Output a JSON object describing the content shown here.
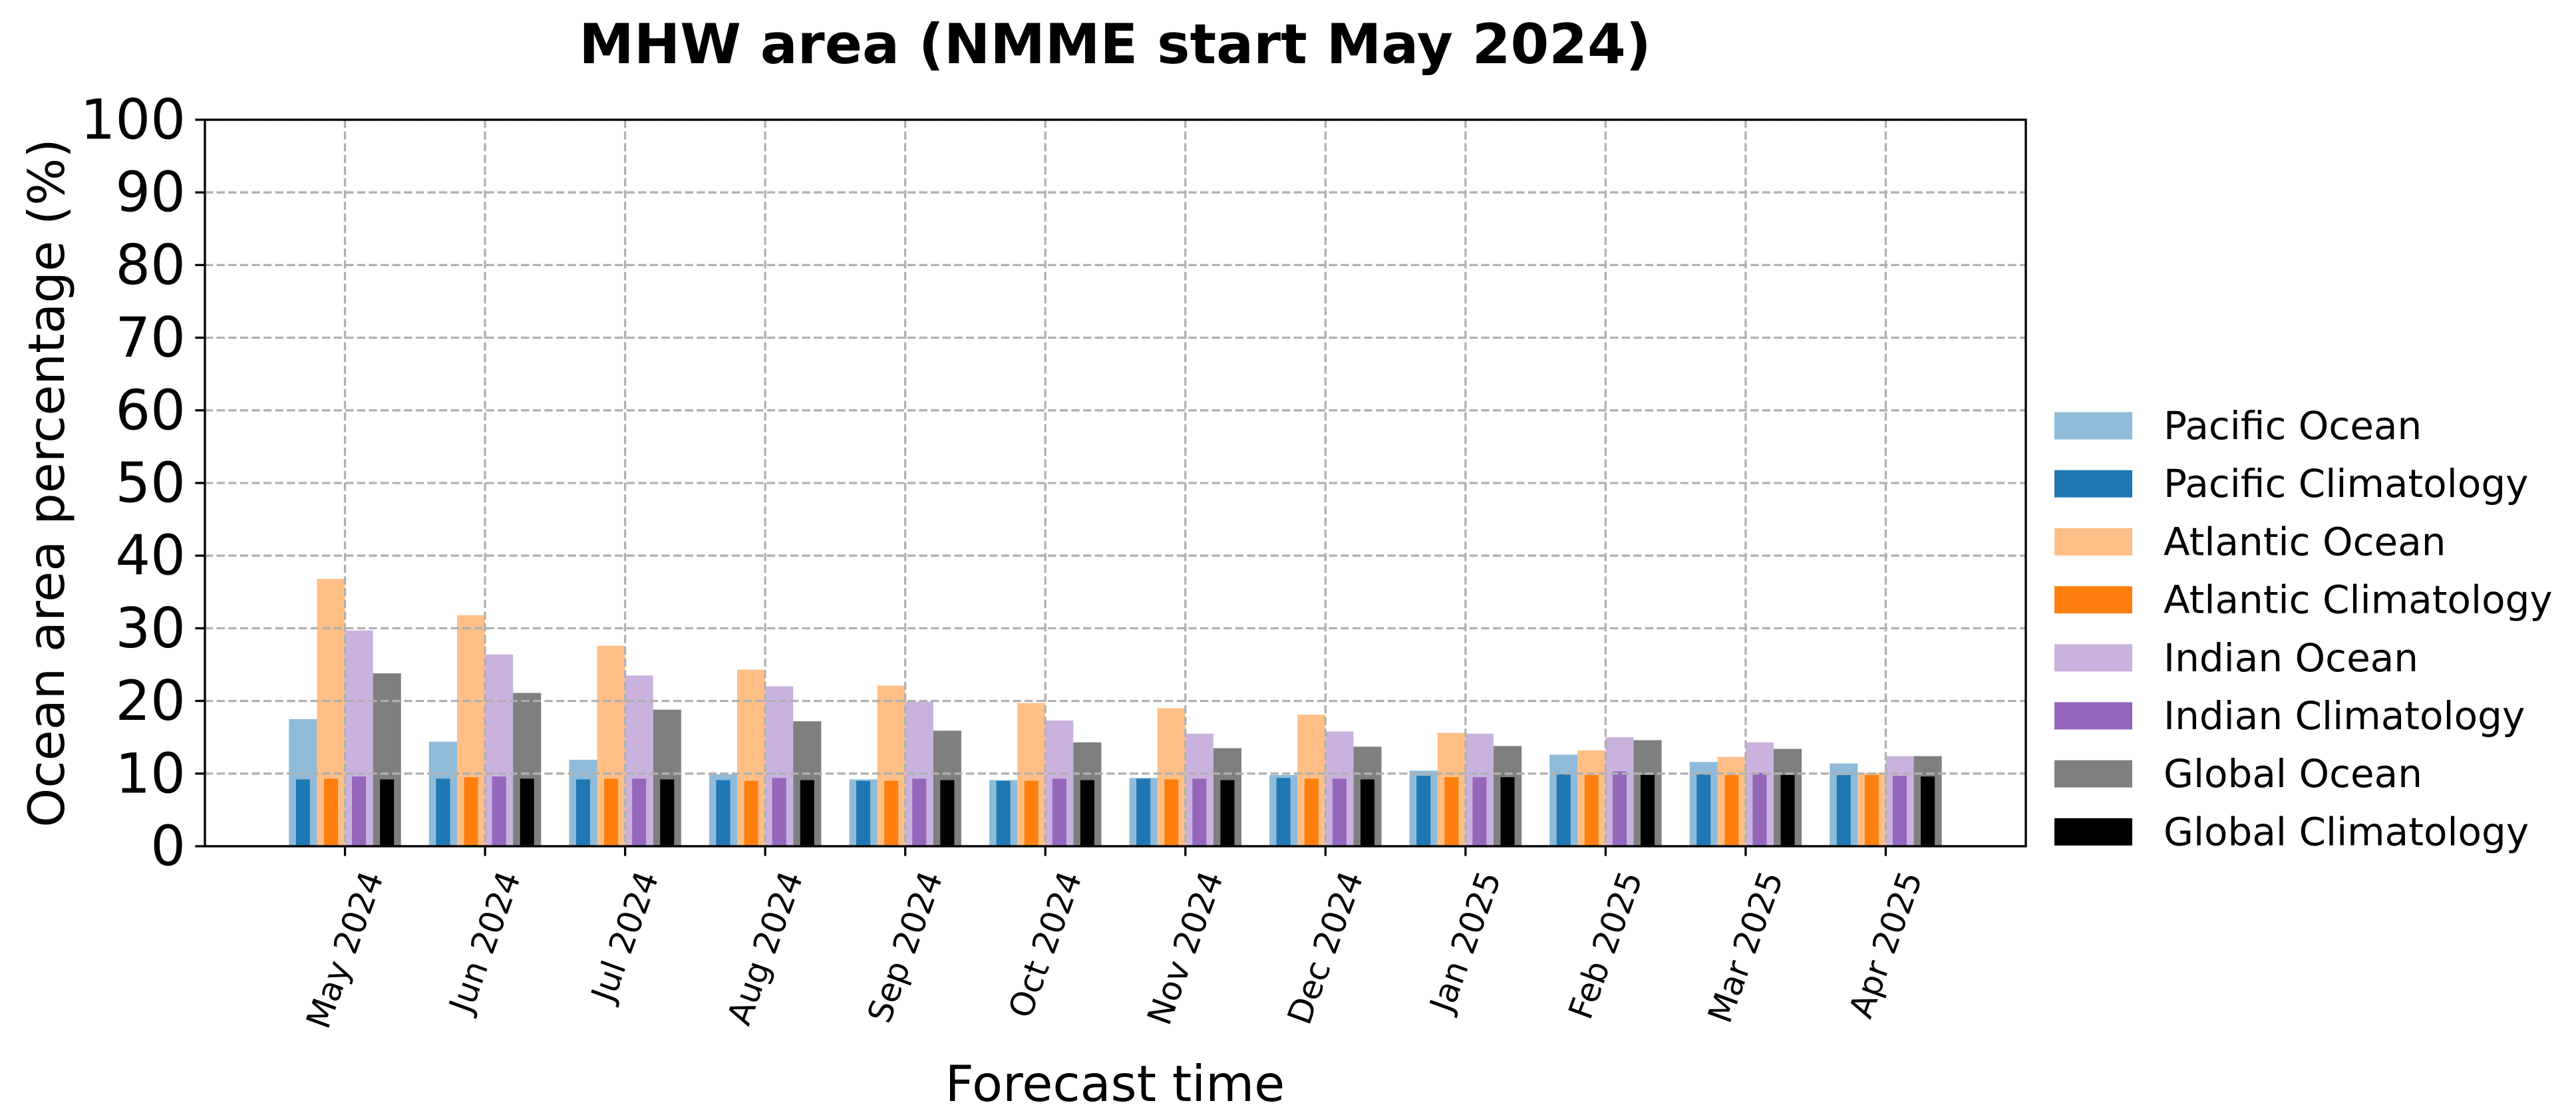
{
  "chart_data": {
    "type": "bar",
    "title": "MHW area (NMME start May 2024)",
    "xlabel": "Forecast time",
    "ylabel": "Ocean area percentage (%)",
    "ylim": [
      0,
      100
    ],
    "yticks": [
      0,
      10,
      20,
      30,
      40,
      50,
      60,
      70,
      80,
      90,
      100
    ],
    "grid": true,
    "legend_position": "outside right",
    "categories": [
      "May 2024",
      "Jun 2024",
      "Jul 2024",
      "Aug 2024",
      "Sep 2024",
      "Oct 2024",
      "Nov 2024",
      "Dec 2024",
      "Jan 2025",
      "Feb 2025",
      "Mar 2025",
      "Apr 2025"
    ],
    "series": [
      {
        "name": "Pacific Ocean",
        "color": "#8fbbd9",
        "values": [
          17.5,
          14.4,
          11.9,
          9.9,
          9.2,
          9.1,
          9.4,
          9.8,
          10.4,
          12.6,
          11.6,
          11.4
        ]
      },
      {
        "name": "Pacific Climatology",
        "color": "#1f77b4",
        "values": [
          9.2,
          9.3,
          9.2,
          9.1,
          9.0,
          9.0,
          9.3,
          9.4,
          9.7,
          9.9,
          9.9,
          9.8
        ]
      },
      {
        "name": "Atlantic Ocean",
        "color": "#ffbf86",
        "values": [
          36.8,
          31.8,
          27.6,
          24.3,
          22.1,
          19.7,
          19.0,
          18.1,
          15.6,
          13.2,
          12.3,
          10.1
        ]
      },
      {
        "name": "Atlantic Climatology",
        "color": "#ff7f0e",
        "values": [
          9.3,
          9.5,
          9.3,
          9.0,
          9.0,
          9.0,
          9.2,
          9.3,
          9.5,
          9.8,
          9.8,
          9.8
        ]
      },
      {
        "name": "Indian Ocean",
        "color": "#c9b3de",
        "values": [
          29.7,
          26.4,
          23.5,
          22.0,
          19.9,
          17.3,
          15.5,
          15.8,
          15.5,
          15.0,
          14.3,
          12.4
        ]
      },
      {
        "name": "Indian Climatology",
        "color": "#9467bd",
        "values": [
          9.6,
          9.6,
          9.3,
          9.4,
          9.3,
          9.3,
          9.3,
          9.3,
          9.5,
          10.3,
          10.1,
          9.7
        ]
      },
      {
        "name": "Global Ocean",
        "color": "#7f7f7f",
        "values": [
          23.8,
          21.1,
          18.8,
          17.2,
          15.9,
          14.3,
          13.5,
          13.7,
          13.8,
          14.6,
          13.4,
          12.4
        ]
      },
      {
        "name": "Global Climatology",
        "color": "#000000",
        "values": [
          9.2,
          9.3,
          9.2,
          9.1,
          9.1,
          9.1,
          9.1,
          9.2,
          9.5,
          9.8,
          9.8,
          9.6
        ]
      }
    ]
  }
}
